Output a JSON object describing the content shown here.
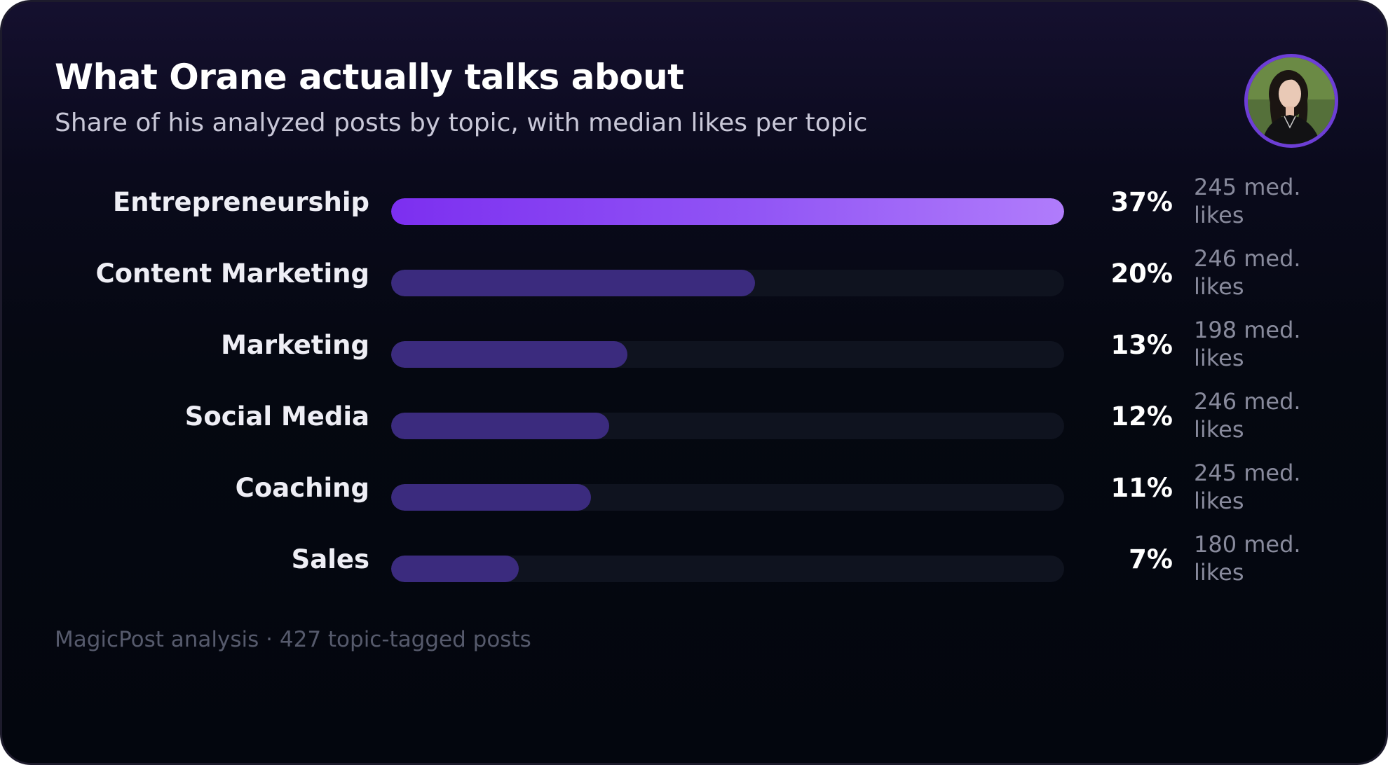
{
  "chart_data": {
    "type": "bar",
    "orientation": "horizontal",
    "title": "What Orane actually talks about",
    "subtitle": "Share of his analyzed posts by topic, with median likes per topic",
    "categories": [
      "Entrepreneurship",
      "Content Marketing",
      "Marketing",
      "Social Media",
      "Coaching",
      "Sales"
    ],
    "values": [
      37,
      20,
      13,
      12,
      11,
      7
    ],
    "value_labels": [
      "37%",
      "20%",
      "13%",
      "12%",
      "11%",
      "7%"
    ],
    "median_likes": [
      "245 med. likes",
      "246 med. likes",
      "198 med. likes",
      "246 med. likes",
      "245 med. likes",
      "180 med. likes"
    ],
    "xlim": [
      0,
      37
    ],
    "grid": false,
    "footer": "MagicPost analysis · 427 topic-tagged posts",
    "colors": {
      "highlight_bar": "#8b45f4",
      "bar": "#3b2b7e",
      "track": "#0f131f"
    }
  },
  "avatar": {
    "icon": "profile-photo"
  }
}
